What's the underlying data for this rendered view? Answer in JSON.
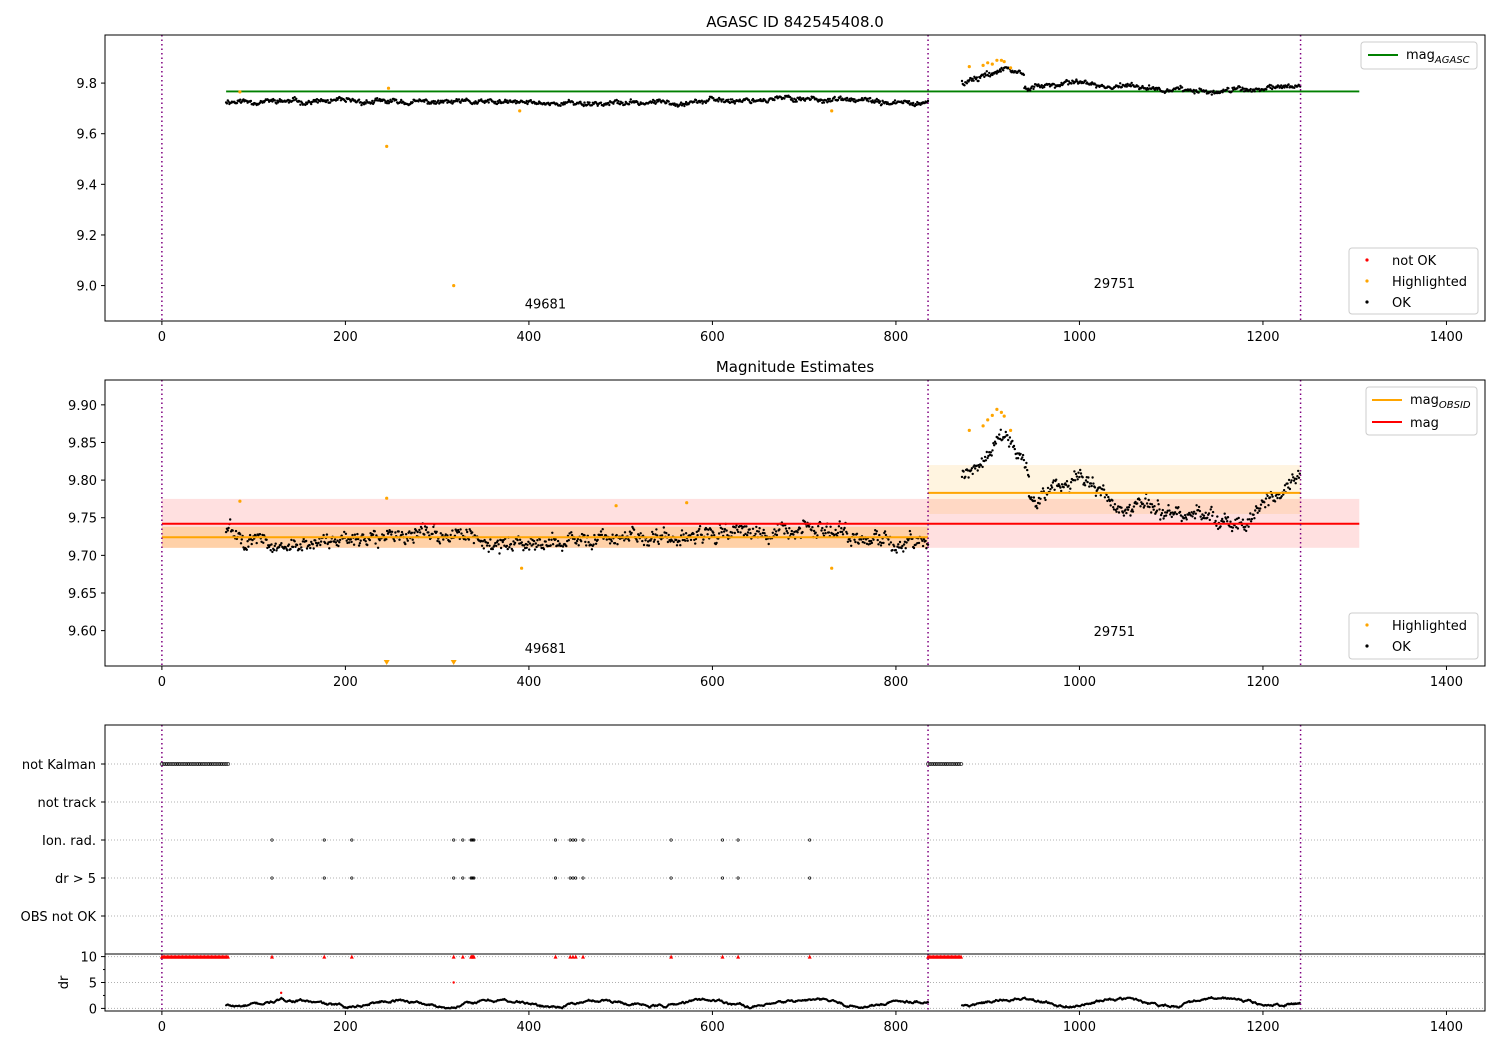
{
  "chart_data": [
    {
      "type": "scatter",
      "title": "AGASC ID 842545408.0",
      "xlim": [
        -62,
        1442
      ],
      "ylim": [
        8.86,
        9.99
      ],
      "xticks": [
        0,
        200,
        400,
        600,
        800,
        1000,
        1200,
        1400
      ],
      "yticks": [
        9.0,
        9.2,
        9.4,
        9.6,
        9.8
      ],
      "ytick_labels": [
        "9.0",
        "9.2",
        "9.4",
        "9.6",
        "9.8"
      ],
      "obsid_boundaries": [
        0,
        835,
        1241
      ],
      "obsid_labels": [
        {
          "text": "49681",
          "x": 418,
          "y": 8.91
        },
        {
          "text": "29751",
          "x": 1038,
          "y": 8.99
        }
      ],
      "reference_lines": [
        {
          "name": "magAGASC",
          "label_base": "mag",
          "label_sub": "AGASC",
          "color": "#008000",
          "x": [
            70,
            1305
          ],
          "y": 9.767
        }
      ],
      "segments": [
        {
          "x": [
            70,
            835
          ],
          "level": 9.725,
          "drift": [
            [
              0,
              0.005
            ],
            [
              500,
              -0.005
            ],
            [
              700,
              0.015
            ],
            [
              835,
              -0.01
            ]
          ],
          "noise": 0.012
        },
        {
          "x": [
            872,
            940
          ],
          "level": 9.835,
          "drift": [
            [
              872,
              -0.03
            ],
            [
              920,
              0.02
            ],
            [
              940,
              0
            ]
          ],
          "noise": 0.015
        },
        {
          "x": [
            940,
            1241
          ],
          "level": 9.772,
          "drift": [
            [
              940,
              0.01
            ],
            [
              1000,
              0.03
            ],
            [
              1150,
              -0.01
            ],
            [
              1241,
              0.02
            ]
          ],
          "noise": 0.012
        }
      ],
      "highlighted": [
        [
          85,
          9.765
        ],
        [
          245,
          9.55
        ],
        [
          247,
          9.78
        ],
        [
          318,
          9.0
        ],
        [
          390,
          9.69
        ],
        [
          730,
          9.69
        ],
        [
          880,
          9.865
        ],
        [
          895,
          9.87
        ],
        [
          900,
          9.88
        ],
        [
          905,
          9.875
        ],
        [
          910,
          9.89
        ],
        [
          915,
          9.89
        ],
        [
          918,
          9.885
        ],
        [
          925,
          9.86
        ]
      ],
      "legends": [
        {
          "position": "upper right",
          "entries": [
            {
              "label_base": "mag",
              "label_sub": "AGASC",
              "kind": "line",
              "color": "#008000"
            }
          ]
        },
        {
          "position": "lower right",
          "entries": [
            {
              "label": "not OK",
              "kind": "dot",
              "color": "#ff0000"
            },
            {
              "label": "Highlighted",
              "kind": "dot",
              "color": "#ffa500"
            },
            {
              "label": "OK",
              "kind": "dot",
              "color": "#000000"
            }
          ]
        }
      ]
    },
    {
      "type": "scatter",
      "title": "Magnitude Estimates",
      "xlim": [
        -62,
        1442
      ],
      "ylim": [
        9.553,
        9.933
      ],
      "xticks": [
        0,
        200,
        400,
        600,
        800,
        1000,
        1200,
        1400
      ],
      "yticks": [
        9.6,
        9.65,
        9.7,
        9.75,
        9.8,
        9.85,
        9.9
      ],
      "ytick_labels": [
        "9.60",
        "9.65",
        "9.70",
        "9.75",
        "9.80",
        "9.85",
        "9.90"
      ],
      "obsid_boundaries": [
        0,
        835,
        1241
      ],
      "obsid_labels": [
        {
          "text": "49681",
          "x": 418,
          "y": 9.57
        },
        {
          "text": "29751",
          "x": 1038,
          "y": 9.593
        }
      ],
      "bands": [
        {
          "color": "#ff0000",
          "opacity": 0.12,
          "x": [
            0,
            1305
          ],
          "y": [
            9.71,
            9.775
          ]
        },
        {
          "color": "#ffa500",
          "opacity": 0.25,
          "x": [
            0,
            835
          ],
          "y": [
            9.71,
            9.738
          ]
        },
        {
          "color": "#ffa500",
          "opacity": 0.12,
          "x": [
            835,
            1241
          ],
          "y": [
            9.755,
            9.82
          ]
        }
      ],
      "reference_lines": [
        {
          "name": "mag",
          "label": "mag",
          "color": "#ff0000",
          "x": [
            0,
            1305
          ],
          "y": 9.742
        },
        {
          "name": "magOBSID 49681",
          "label_base": "mag",
          "label_sub": "OBSID",
          "color": "#ffa500",
          "x": [
            0,
            835
          ],
          "y": 9.724
        },
        {
          "name": "magOBSID 29751",
          "label_base": "mag",
          "label_sub": "OBSID",
          "color": "#ffa500",
          "x": [
            835,
            1241
          ],
          "y": 9.783
        }
      ],
      "segments": [
        {
          "x": [
            70,
            835
          ],
          "level": 9.724,
          "drift": [
            [
              70,
              0.01
            ],
            [
              120,
              -0.012
            ],
            [
              300,
              0.01
            ],
            [
              360,
              -0.01
            ],
            [
              700,
              0.012
            ],
            [
              835,
              -0.008
            ]
          ],
          "noise": 0.013
        },
        {
          "x": [
            872,
            945
          ],
          "level": 9.835,
          "drift": [
            [
              872,
              -0.03
            ],
            [
              920,
              0.02
            ],
            [
              945,
              -0.03
            ]
          ],
          "noise": 0.012
        },
        {
          "x": [
            945,
            1241
          ],
          "level": 9.772,
          "drift": [
            [
              945,
              0.005
            ],
            [
              1000,
              0.035
            ],
            [
              1040,
              -0.005
            ],
            [
              1180,
              -0.03
            ],
            [
              1241,
              0.04
            ]
          ],
          "noise": 0.013
        }
      ],
      "highlighted": [
        [
          85,
          9.772
        ],
        [
          245,
          9.776
        ],
        [
          392,
          9.683
        ],
        [
          495,
          9.766
        ],
        [
          572,
          9.77
        ],
        [
          730,
          9.683
        ],
        [
          880,
          9.866
        ],
        [
          895,
          9.872
        ],
        [
          900,
          9.88
        ],
        [
          905,
          9.886
        ],
        [
          910,
          9.894
        ],
        [
          915,
          9.89
        ],
        [
          918,
          9.885
        ],
        [
          925,
          9.866
        ]
      ],
      "offscale": [
        245,
        318
      ],
      "legends": [
        {
          "position": "upper right",
          "entries": [
            {
              "label_base": "mag",
              "label_sub": "OBSID",
              "kind": "line",
              "color": "#ffa500"
            },
            {
              "label": "mag",
              "kind": "line",
              "color": "#ff0000"
            }
          ]
        },
        {
          "position": "lower right",
          "entries": [
            {
              "label": "Highlighted",
              "kind": "dot",
              "color": "#ffa500"
            },
            {
              "label": "OK",
              "kind": "dot",
              "color": "#000000"
            }
          ]
        }
      ]
    },
    {
      "type": "scatter",
      "xlim": [
        -62,
        1442
      ],
      "rows": [
        "not Kalman",
        "not track",
        "Ion. rad.",
        "dr > 5",
        "OBS not OK"
      ],
      "obsid_boundaries": [
        0,
        835,
        1241
      ],
      "flags": {
        "not Kalman": [
          [
            0,
            72
          ],
          [
            835,
            872
          ]
        ],
        "not track": [],
        "Ion. rad.": [
          120,
          177,
          207,
          318,
          328,
          337,
          338,
          339,
          340,
          429,
          445,
          448,
          451,
          459,
          555,
          611,
          628,
          706
        ],
        "dr > 5": [
          120,
          177,
          207,
          318,
          328,
          337,
          338,
          339,
          340,
          429,
          445,
          448,
          451,
          459,
          555,
          611,
          628,
          706
        ],
        "OBS not OK": []
      }
    },
    {
      "type": "scatter",
      "ylabel": "dr",
      "xlim": [
        -62,
        1442
      ],
      "ylim": [
        -0.5,
        10.5
      ],
      "xticks": [
        0,
        200,
        400,
        600,
        800,
        1000,
        1200,
        1400
      ],
      "yticks": [
        0,
        5,
        10
      ],
      "ytick_labels": [
        "0",
        "5",
        "10"
      ],
      "obsid_boundaries": [
        0,
        835,
        1241
      ],
      "capped_value": 10,
      "capped_ranges": [
        [
          0,
          72
        ],
        [
          835,
          872
        ]
      ],
      "capped_points": [
        120,
        177,
        207,
        318,
        328,
        337,
        338,
        339,
        340,
        429,
        445,
        448,
        451,
        459,
        555,
        611,
        628,
        706
      ],
      "red_points": [
        [
          130,
          3.0
        ],
        [
          318,
          5.0
        ]
      ],
      "segments": [
        {
          "x": [
            70,
            835
          ],
          "level": 1.0
        },
        {
          "x": [
            872,
            1241
          ],
          "level": 1.2
        }
      ]
    }
  ]
}
